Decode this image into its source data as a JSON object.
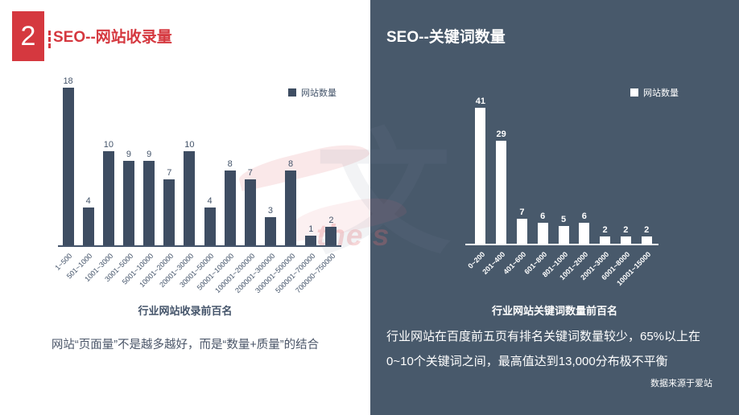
{
  "slide": {
    "badge": "2",
    "colors": {
      "accent_red": "#D5383F",
      "dark_slate": "#3E4D62",
      "text_dark": "#44546A",
      "right_panel_bg": "#48596B"
    }
  },
  "watermark": {
    "glyph": "文",
    "text": "the s"
  },
  "left_panel": {
    "title": "SEO--网站收录量",
    "note": "网站“页面量”不是越多越好，而是“数量+质量”的结合"
  },
  "right_panel": {
    "title": "SEO--关键词数量",
    "note_line1": "行业网站在百度前五页有排名关键词数量较少，65%以上在",
    "note_line2": "0~10个关键词之间，最高值达到13,000分布极不平衡",
    "source": "数据来源于爱站"
  },
  "chart_data": [
    {
      "type": "bar",
      "title": "行业网站收录前百名",
      "legend": [
        "网站数量"
      ],
      "categories": [
        "1~500",
        "501~1000",
        "1001~3000",
        "3001~5000",
        "5001~10000",
        "10001~20000",
        "20001~30000",
        "30001~50000",
        "50001~100000",
        "100001~200000",
        "200001~300000",
        "300001~500000",
        "500001~700000",
        "700000~750000"
      ],
      "values": [
        18,
        4,
        10,
        9,
        9,
        7,
        10,
        4,
        8,
        7,
        3,
        8,
        1,
        2
      ],
      "xlabel": "",
      "ylabel": "",
      "ylim": [
        0,
        18
      ],
      "bar_color": "#3E4D62",
      "grid": false,
      "legend_position": "top-right",
      "data_labels": "above-bars",
      "x_tick_rotation": 45
    },
    {
      "type": "bar",
      "title": "行业网站关键词数量前百名",
      "legend": [
        "网站数量"
      ],
      "categories": [
        "0~200",
        "201~400",
        "401~600",
        "601~800",
        "801~1000",
        "1001~2000",
        "2001~3000",
        "6001~8000",
        "10001~15000"
      ],
      "values": [
        41,
        29,
        7,
        6,
        5,
        6,
        2,
        2,
        2
      ],
      "xlabel": "",
      "ylabel": "",
      "ylim": [
        0,
        41
      ],
      "bar_color": "#FFFFFF",
      "grid": false,
      "legend_position": "top-right",
      "data_labels": "above-bars",
      "x_tick_rotation": 45
    }
  ]
}
